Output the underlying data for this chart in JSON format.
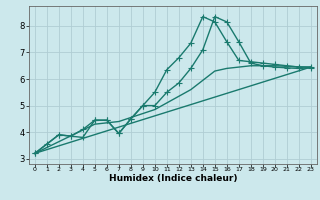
{
  "xlabel": "Humidex (Indice chaleur)",
  "ylabel": "",
  "background_color": "#cce8ec",
  "grid_color": "#b0cdd4",
  "line_color": "#1a7a6e",
  "xlim": [
    -0.5,
    23.5
  ],
  "ylim": [
    2.8,
    8.75
  ],
  "xticks": [
    0,
    1,
    2,
    3,
    4,
    5,
    6,
    7,
    8,
    9,
    10,
    11,
    12,
    13,
    14,
    15,
    16,
    17,
    18,
    19,
    20,
    21,
    22,
    23
  ],
  "yticks": [
    3,
    4,
    5,
    6,
    7,
    8
  ],
  "line1_x": [
    0,
    1,
    2,
    3,
    4,
    5,
    6,
    7,
    8,
    9,
    10,
    11,
    12,
    13,
    14,
    15,
    16,
    17,
    18,
    19,
    20,
    21,
    22,
    23
  ],
  "line1_y": [
    3.2,
    3.55,
    3.9,
    3.85,
    3.8,
    4.45,
    4.45,
    3.95,
    4.5,
    5.0,
    5.5,
    6.35,
    6.8,
    7.35,
    8.35,
    8.15,
    7.4,
    6.7,
    6.65,
    6.6,
    6.55,
    6.5,
    6.45,
    6.45
  ],
  "line2_x": [
    0,
    2,
    3,
    4,
    5,
    6,
    7,
    8,
    9,
    10,
    11,
    12,
    13,
    14,
    15,
    16,
    17,
    18,
    19,
    20,
    21,
    22,
    23
  ],
  "line2_y": [
    3.2,
    3.9,
    3.85,
    4.1,
    4.45,
    4.45,
    3.95,
    4.5,
    5.0,
    5.0,
    5.5,
    5.85,
    6.4,
    7.1,
    8.35,
    8.15,
    7.4,
    6.6,
    6.5,
    6.45,
    6.42,
    6.4,
    6.42
  ],
  "line3_x": [
    0,
    23
  ],
  "line3_y": [
    3.2,
    6.45
  ],
  "line4_x": [
    0,
    5,
    6,
    7,
    8,
    9,
    10,
    11,
    12,
    13,
    14,
    15,
    16,
    17,
    18,
    19,
    20,
    21,
    22,
    23
  ],
  "line4_y": [
    3.2,
    4.3,
    4.35,
    4.4,
    4.55,
    4.7,
    4.85,
    5.1,
    5.35,
    5.6,
    5.95,
    6.3,
    6.4,
    6.45,
    6.5,
    6.5,
    6.5,
    6.48,
    6.46,
    6.45
  ],
  "marker_size": 3,
  "line_width": 1.0,
  "xlabel_fontsize": 6.5,
  "tick_fontsize_x": 4.5,
  "tick_fontsize_y": 6.0
}
